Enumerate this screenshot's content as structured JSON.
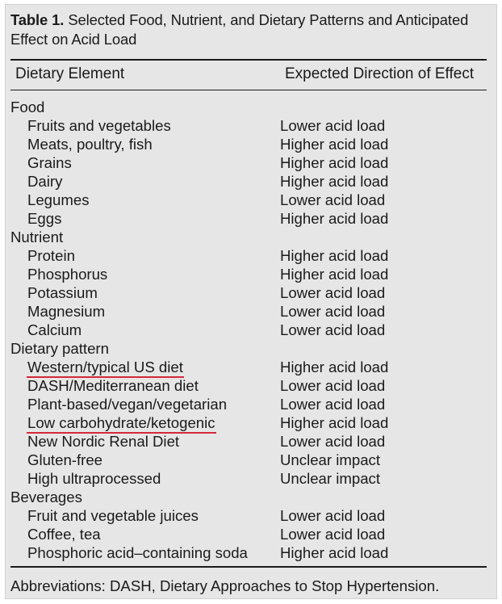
{
  "table": {
    "number": "Table 1.",
    "title": "Selected Food, Nutrient, and Dietary Patterns and Anticipated Effect on Acid Load",
    "headers": [
      "Dietary Element",
      "Expected Direction of Effect"
    ],
    "rows": [
      {
        "element": "Food",
        "effect": "",
        "category": true
      },
      {
        "element": "Fruits and vegetables",
        "effect": "Lower acid load"
      },
      {
        "element": "Meats, poultry, fish",
        "effect": "Higher acid load"
      },
      {
        "element": "Grains",
        "effect": "Higher acid load"
      },
      {
        "element": "Dairy",
        "effect": "Higher acid load"
      },
      {
        "element": "Legumes",
        "effect": "Lower acid load"
      },
      {
        "element": "Eggs",
        "effect": "Higher acid load"
      },
      {
        "element": "Nutrient",
        "effect": "",
        "category": true
      },
      {
        "element": "Protein",
        "effect": "Higher acid load"
      },
      {
        "element": "Phosphorus",
        "effect": "Higher acid load"
      },
      {
        "element": "Potassium",
        "effect": "Lower acid load"
      },
      {
        "element": "Magnesium",
        "effect": "Lower acid load"
      },
      {
        "element": "Calcium",
        "effect": "Lower acid load"
      },
      {
        "element": "Dietary pattern",
        "effect": "",
        "category": true
      },
      {
        "element": "Western/typical US diet",
        "effect": "Higher acid load",
        "highlighted": true
      },
      {
        "element": "DASH/Mediterranean diet",
        "effect": "Lower acid load"
      },
      {
        "element": "Plant-based/vegan/vegetarian",
        "effect": "Lower acid load"
      },
      {
        "element": "Low carbohydrate/ketogenic",
        "effect": "Higher acid load",
        "highlighted": true
      },
      {
        "element": "New Nordic Renal Diet",
        "effect": "Lower acid load"
      },
      {
        "element": "Gluten-free",
        "effect": "Unclear impact"
      },
      {
        "element": "High ultraprocessed",
        "effect": "Unclear impact"
      },
      {
        "element": "Beverages",
        "effect": "",
        "category": true
      },
      {
        "element": "Fruit and vegetable juices",
        "effect": "Lower acid load"
      },
      {
        "element": "Coffee, tea",
        "effect": "Lower acid load"
      },
      {
        "element": "Phosphoric acid–containing soda",
        "effect": "Higher acid load"
      }
    ],
    "footnote": "Abbreviations: DASH, Dietary Approaches to Stop Hypertension."
  },
  "colors": {
    "panel_background": "#e6e6e6",
    "text": "#1a1a1a",
    "highlight_underline": "#d6283a"
  }
}
